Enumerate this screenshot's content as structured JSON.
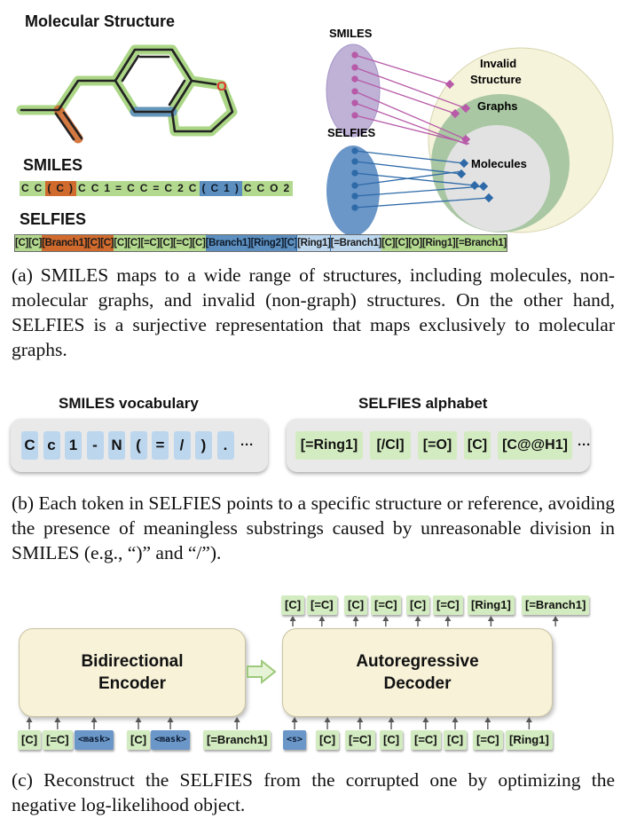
{
  "panel_a": {
    "molecular_structure_title": "Molecular Structure",
    "smiles_title": "SMILES",
    "selfies_title": "SELFIES",
    "atom_label": "O",
    "smiles_tokens": [
      {
        "text": "C",
        "color": "green"
      },
      {
        "text": "C",
        "color": "green"
      },
      {
        "text": "(",
        "color": "orange"
      },
      {
        "text": "C",
        "color": "orange"
      },
      {
        "text": ")",
        "color": "orange"
      },
      {
        "text": "C",
        "color": "green"
      },
      {
        "text": "C",
        "color": "green"
      },
      {
        "text": "1",
        "color": "green"
      },
      {
        "text": "=",
        "color": "green"
      },
      {
        "text": "C",
        "color": "green"
      },
      {
        "text": "C",
        "color": "green"
      },
      {
        "text": "=",
        "color": "green"
      },
      {
        "text": "C",
        "color": "green"
      },
      {
        "text": "2",
        "color": "green"
      },
      {
        "text": "C",
        "color": "green"
      },
      {
        "text": "(",
        "color": "blue"
      },
      {
        "text": "C",
        "color": "blue"
      },
      {
        "text": "1",
        "color": "blue"
      },
      {
        "text": ")",
        "color": "blue"
      },
      {
        "text": "C",
        "color": "green"
      },
      {
        "text": "C",
        "color": "green"
      },
      {
        "text": "O",
        "color": "green"
      },
      {
        "text": "2",
        "color": "green"
      }
    ],
    "selfies_tokens": [
      {
        "text": "[C]",
        "color": "green"
      },
      {
        "text": "[C]",
        "color": "green"
      },
      {
        "text": "[Branch1]",
        "color": "orange"
      },
      {
        "text": "[C]",
        "color": "orange"
      },
      {
        "text": "[C]",
        "color": "orange"
      },
      {
        "text": "[C]",
        "color": "green"
      },
      {
        "text": "[C]",
        "color": "green"
      },
      {
        "text": "[=C]",
        "color": "green"
      },
      {
        "text": "[C]",
        "color": "green"
      },
      {
        "text": "[=C]",
        "color": "green"
      },
      {
        "text": "[C]",
        "color": "green"
      },
      {
        "text": "[Branch1]",
        "color": "blue"
      },
      {
        "text": "[Ring2]",
        "color": "blue"
      },
      {
        "text": "[C]",
        "color": "blue"
      },
      {
        "text": "[Ring1]",
        "color": "lblue"
      },
      {
        "text": "[=Branch1]",
        "color": "lblue"
      },
      {
        "text": "[C]",
        "color": "green"
      },
      {
        "text": "[C]",
        "color": "green"
      },
      {
        "text": "[O]",
        "color": "green"
      },
      {
        "text": "[Ring1]",
        "color": "green"
      },
      {
        "text": "[=Branch1]",
        "color": "green"
      }
    ],
    "venn_smiles_label": "SMILES",
    "venn_selfies_label": "SELFIES",
    "venn_invalid_label_line1": "Invalid",
    "venn_invalid_label_line2": "Structure",
    "venn_graphs_label": "Graphs",
    "venn_molecules_label": "Molecules",
    "caption": "(a) SMILES maps to a wide range of structures, including molecules, non-molecular graphs, and invalid (non-graph) structures. On the other hand, SELFIES is a surjective representation that maps exclusively to molecular graphs."
  },
  "panel_b": {
    "smiles_vocab_title": "SMILES vocabulary",
    "selfies_alphabet_title": "SELFIES alphabet",
    "smiles_vocab": [
      "C",
      "c",
      "1",
      "-",
      "N",
      "(",
      "=",
      "/",
      ")",
      "."
    ],
    "selfies_alphabet": [
      "[=Ring1]",
      "[/Cl]",
      "[=O]",
      "[C]",
      "[C@@H1]"
    ],
    "ellipsis": "···",
    "caption": "(b) Each token in SELFIES points to a specific structure or reference, avoiding the presence of meaningless substrings caused by unreasonable division in SMILES (e.g., “)” and “/”)."
  },
  "panel_c": {
    "encoder_line1": "Bidirectional",
    "encoder_line2": "Encoder",
    "decoder_line1": "Autoregressive",
    "decoder_line2": "Decoder",
    "encoder_inputs": [
      "[C]",
      "[=C]",
      "<mask>",
      "[C]",
      "<mask>",
      "[=Branch1]"
    ],
    "decoder_inputs": [
      "<s>",
      "[C]",
      "[=C]",
      "[C]",
      "[=C]",
      "[C]",
      "[=C]",
      "[Ring1]"
    ],
    "decoder_outputs": [
      "[C]",
      "[=C]",
      "[C]",
      "[=C]",
      "[C]",
      "[=C]",
      "[Ring1]",
      "[=Branch1]"
    ],
    "caption": "(c) Reconstruct the SELFIES from the corrupted one by optimizing the negative log-likelihood object."
  },
  "colors": {
    "green": "#b3d98e",
    "orange": "#d06a2d",
    "blue": "#5c8fbf",
    "light_blue": "#bcd6ee",
    "selfies_ellipse": "#6b96c8",
    "smiles_ellipse": "#bfb2d6",
    "invalid_circle": "#f5f3da",
    "graphs_circle": "#a9c7a3",
    "molecules_circle": "#e2e2e2"
  }
}
